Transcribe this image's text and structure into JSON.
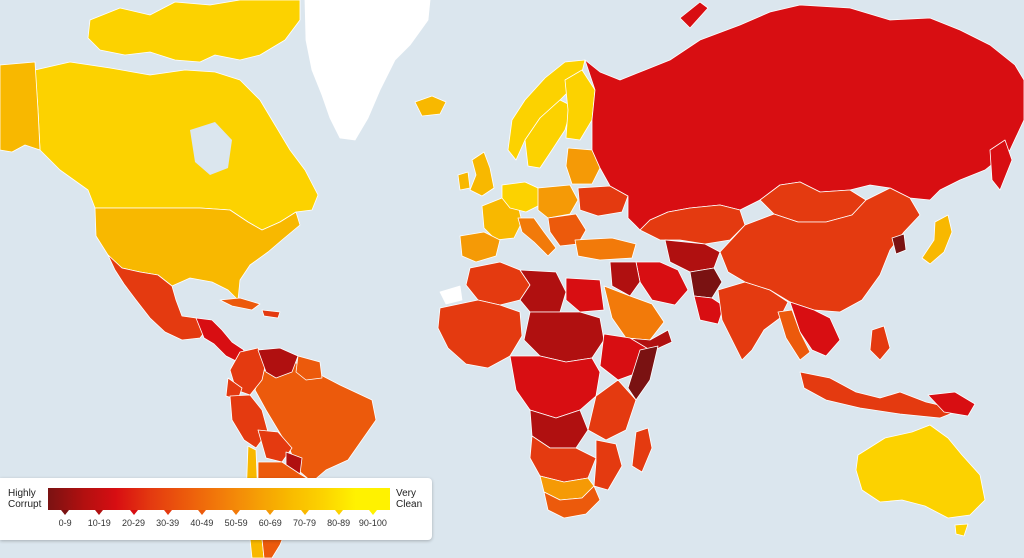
{
  "legend": {
    "left_label": "Highly\nCorrupt",
    "right_label": "Very\nClean",
    "ranges": [
      "0-9",
      "10-19",
      "20-29",
      "30-39",
      "40-49",
      "50-59",
      "60-69",
      "70-79",
      "80-89",
      "90-100"
    ],
    "colors": [
      "#7a1212",
      "#b01010",
      "#d80e12",
      "#e43a10",
      "#ec5a0c",
      "#f27a0a",
      "#f59a06",
      "#f8b800",
      "#fcd200",
      "#fff200"
    ]
  },
  "palette": {
    "ocean": "#dbe6ee",
    "ice": "#ffffff",
    "very_clean": "#fcd200",
    "clean": "#f8b800",
    "mid": "#f59a06",
    "lower_mid": "#f27a0a",
    "low": "#ec5a0c",
    "lower": "#e43a10",
    "corrupt": "#d80e12",
    "very_corrupt": "#b01010",
    "most_corrupt": "#7a1212"
  }
}
